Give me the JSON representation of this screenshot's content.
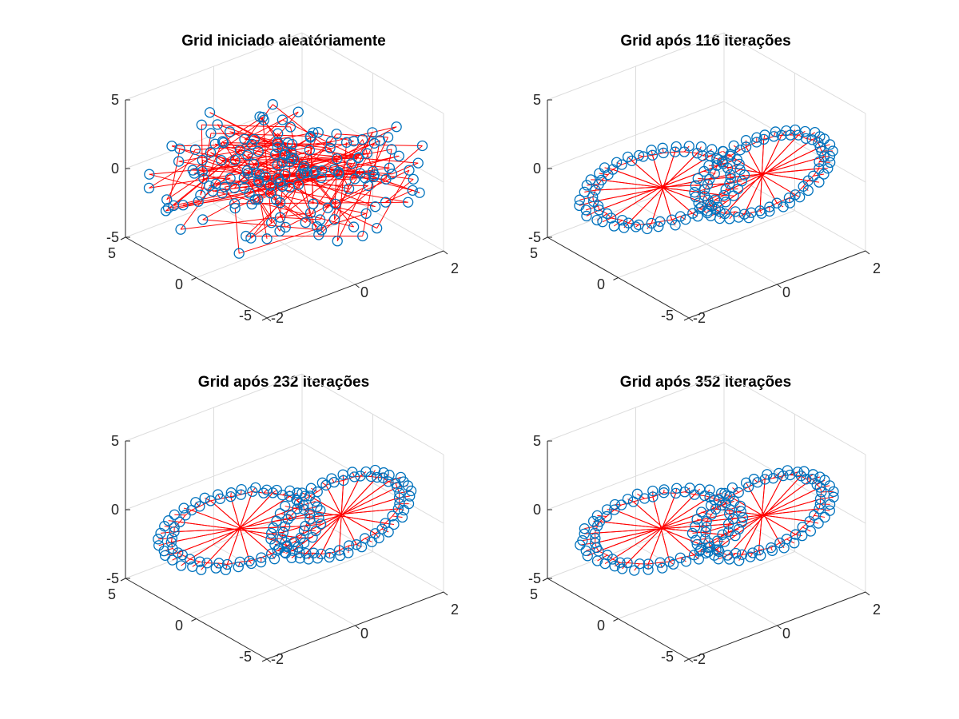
{
  "figure": {
    "background": "#ffffff"
  },
  "chart_data": [
    {
      "type": "scatter",
      "title": "Grid iniciado aleatóriamente",
      "iterations": 0,
      "state": "random",
      "marker_color": "#0072BD",
      "line_color": "#FF0000",
      "grid": true,
      "x_ticks": [
        "-2",
        "0",
        "2"
      ],
      "x_range": [
        -2,
        2
      ],
      "y_ticks": [
        "-5",
        "0",
        "5"
      ],
      "y_range": [
        -5,
        5
      ],
      "z_ticks": [
        "-5",
        "0",
        "5"
      ],
      "z_range": [
        -5,
        5
      ]
    },
    {
      "type": "scatter",
      "title": "Grid após 116 iterações",
      "iterations": 116,
      "state": "organized",
      "marker_color": "#0072BD",
      "line_color": "#FF0000",
      "grid": true,
      "x_ticks": [
        "-2",
        "0",
        "2"
      ],
      "x_range": [
        -2,
        2
      ],
      "y_ticks": [
        "-5",
        "0",
        "5"
      ],
      "y_range": [
        -5,
        5
      ],
      "z_ticks": [
        "-5",
        "0",
        "5"
      ],
      "z_range": [
        -5,
        5
      ]
    },
    {
      "type": "scatter",
      "title": "Grid após 232 iterações",
      "iterations": 232,
      "state": "organized",
      "marker_color": "#0072BD",
      "line_color": "#FF0000",
      "grid": true,
      "x_ticks": [
        "-2",
        "0",
        "2"
      ],
      "x_range": [
        -2,
        2
      ],
      "y_ticks": [
        "-5",
        "0",
        "5"
      ],
      "y_range": [
        -5,
        5
      ],
      "z_ticks": [
        "-5",
        "0",
        "5"
      ],
      "z_range": [
        -5,
        5
      ]
    },
    {
      "type": "scatter",
      "title": "Grid após 352 iterações",
      "iterations": 352,
      "state": "organized",
      "marker_color": "#0072BD",
      "line_color": "#FF0000",
      "grid": true,
      "x_ticks": [
        "-2",
        "0",
        "2"
      ],
      "x_range": [
        -2,
        2
      ],
      "y_ticks": [
        "-5",
        "0",
        "5"
      ],
      "y_range": [
        -5,
        5
      ],
      "z_ticks": [
        "-5",
        "0",
        "5"
      ],
      "z_range": [
        -5,
        5
      ]
    }
  ]
}
